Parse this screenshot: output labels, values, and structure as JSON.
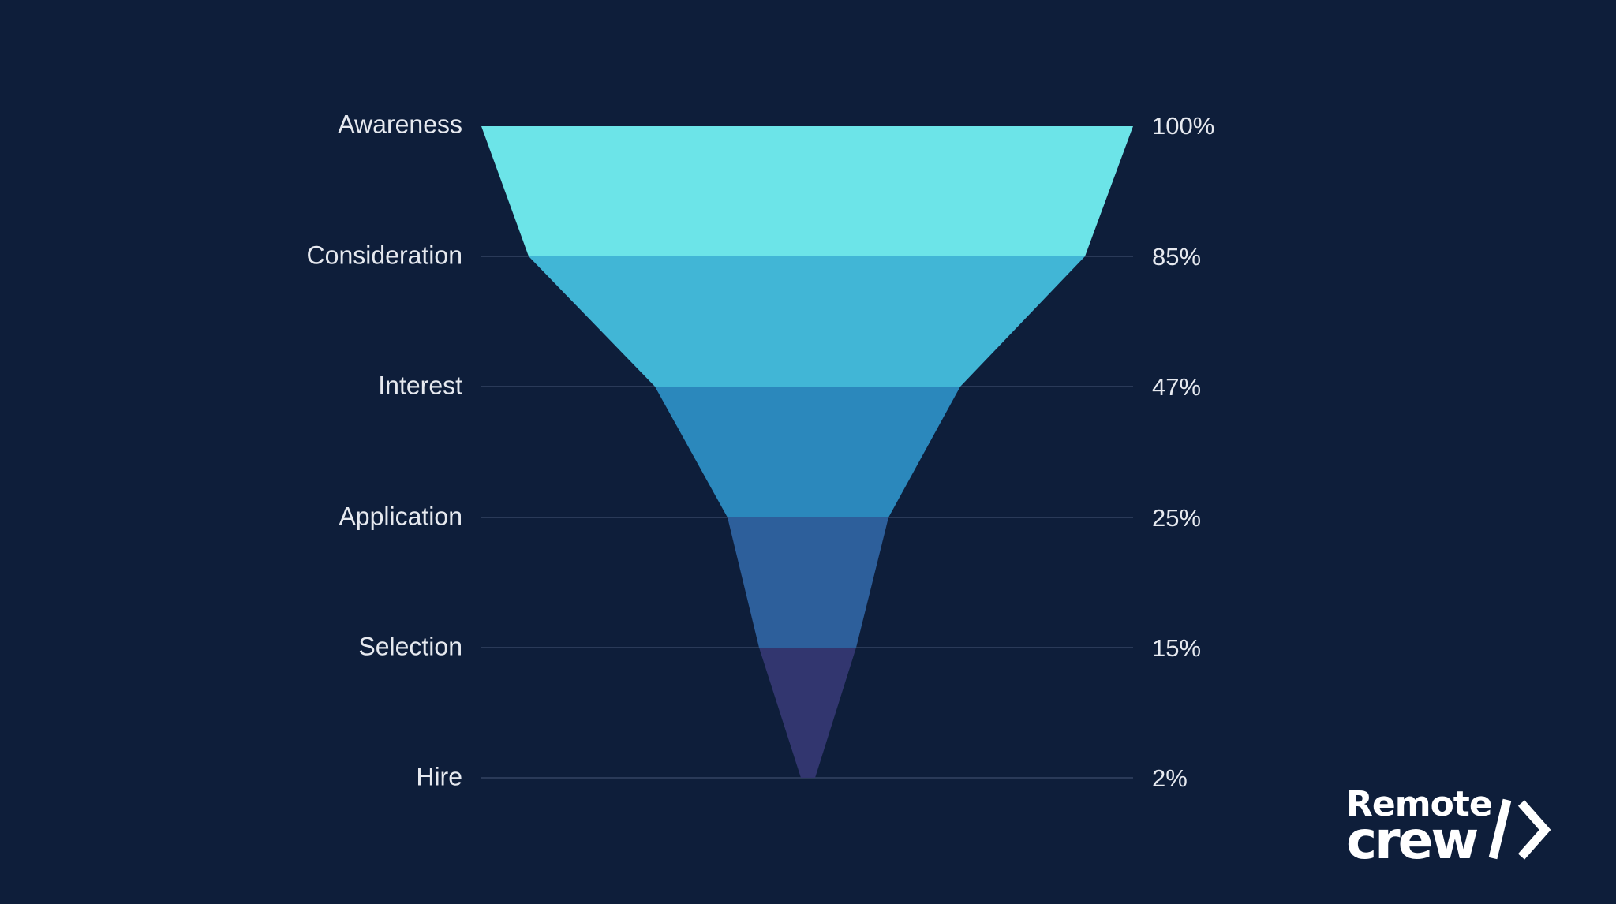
{
  "chart_data": {
    "type": "funnel",
    "title": "",
    "categories": [
      "Awareness",
      "Consideration",
      "Interest",
      "Application",
      "Selection",
      "Hire"
    ],
    "values": [
      100,
      85,
      47,
      25,
      15,
      2
    ],
    "value_labels": [
      "100%",
      "85%",
      "47%",
      "25%",
      "15%",
      "2%"
    ],
    "colors": [
      "#6ce4e8",
      "#41b6d6",
      "#2b88bc",
      "#2d5f9b",
      "#32366f"
    ],
    "grid": true,
    "background": "#0e1e3a"
  },
  "stages": [
    {
      "label": "Awareness",
      "value": "100%"
    },
    {
      "label": "Consideration",
      "value": "85%"
    },
    {
      "label": "Interest",
      "value": "47%"
    },
    {
      "label": "Application",
      "value": "25%"
    },
    {
      "label": "Selection",
      "value": "15%"
    },
    {
      "label": "Hire",
      "value": "2%"
    }
  ],
  "logo": {
    "line1": "Remote",
    "line2": "crew"
  }
}
